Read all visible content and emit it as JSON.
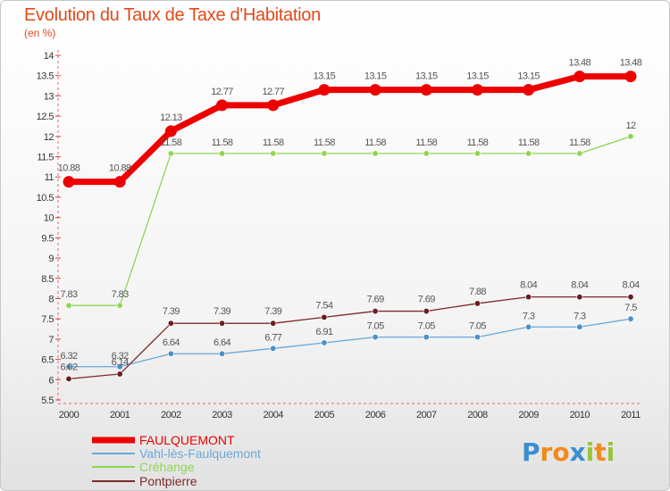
{
  "chart_data": {
    "type": "line",
    "title": "Evolution du Taux de Taxe d'Habitation",
    "subtitle": "(en %)",
    "xlabel": "",
    "ylabel": "(en %)",
    "ylim": [
      5.5,
      14
    ],
    "yticks": [
      "5.5",
      "6",
      "6.5",
      "7",
      "7.5",
      "8",
      "8.5",
      "9",
      "9.5",
      "10",
      "10.5",
      "11",
      "11.5",
      "12",
      "12.5",
      "13",
      "13.5",
      "14"
    ],
    "x": [
      "2000",
      "2001",
      "2002",
      "2003",
      "2004",
      "2005",
      "2006",
      "2007",
      "2008",
      "2009",
      "2010",
      "2011"
    ],
    "series": [
      {
        "name": "FAULQUEMONT",
        "color": "#ee0000",
        "values": [
          10.88,
          10.88,
          12.13,
          12.77,
          12.77,
          13.15,
          13.15,
          13.15,
          13.15,
          13.15,
          13.48,
          13.48
        ],
        "labels": [
          "10.88",
          "10.88",
          "12.13",
          "12.77",
          "12.77",
          "13.15",
          "13.15",
          "13.15",
          "13.15",
          "13.15",
          "13.48",
          "13.48"
        ]
      },
      {
        "name": "Vahl-lès-Faulquemont",
        "color": "#6aa8d8",
        "values": [
          6.32,
          6.32,
          6.64,
          6.64,
          6.77,
          6.91,
          7.05,
          7.05,
          7.05,
          7.3,
          7.3,
          7.5
        ],
        "labels": [
          "6.32",
          "6.32",
          "6.64",
          "6.64",
          "6.77",
          "6.91",
          "7.05",
          "7.05",
          "7.05",
          "7.3",
          "7.3",
          "7.5"
        ]
      },
      {
        "name": "Créhange",
        "color": "#8ed654",
        "values": [
          7.83,
          7.83,
          11.58,
          11.58,
          11.58,
          11.58,
          11.58,
          11.58,
          11.58,
          11.58,
          11.58,
          12
        ],
        "labels": [
          "7.83",
          "7.83",
          "11.58",
          "11.58",
          "11.58",
          "11.58",
          "11.58",
          "11.58",
          "11.58",
          "11.58",
          "11.58",
          "12"
        ]
      },
      {
        "name": "Pontpierre",
        "color": "#7a2a2a",
        "values": [
          6.02,
          6.14,
          7.39,
          7.39,
          7.39,
          7.54,
          7.69,
          7.69,
          7.88,
          8.04,
          8.04,
          8.04
        ],
        "labels": [
          "6.02",
          "6.14",
          "7.39",
          "7.39",
          "7.39",
          "7.54",
          "7.69",
          "7.69",
          "7.88",
          "8.04",
          "8.04",
          "8.04"
        ]
      }
    ],
    "legend": "bottom-left",
    "grid": false
  },
  "logo": {
    "text": "Proxiti"
  }
}
